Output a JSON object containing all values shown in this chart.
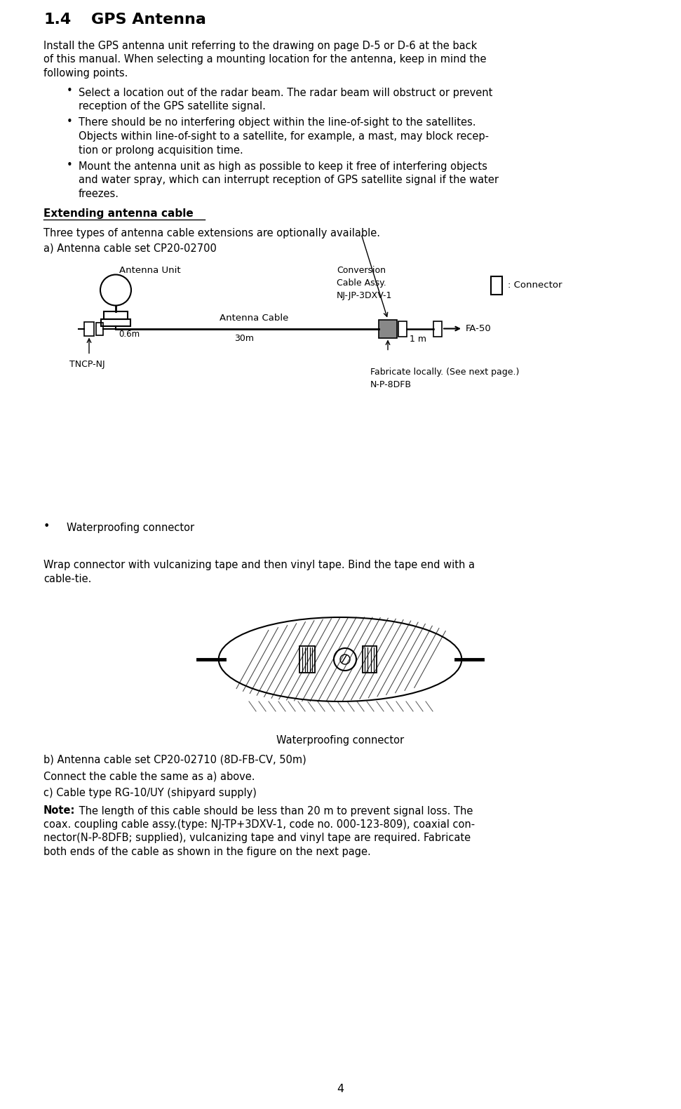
{
  "page_number": "4",
  "section_number": "1.4",
  "section_title": "GPS Antenna",
  "bg_color": "#ffffff",
  "text_color": "#000000",
  "body_font_size": 10.5,
  "title_font_size": 16,
  "intro_text": "Install the GPS antenna unit referring to the drawing on page D-5 or D-6 at the back\nof this manual. When selecting a mounting location for the antenna, keep in mind the\nfollowing points.",
  "bullets": [
    "Select a location out of the radar beam. The radar beam will obstruct or prevent\nreception of the GPS satellite signal.",
    "There should be no interfering object within the line-of-sight to the satellites.\nObjects within line-of-sight to a satellite, for example, a mast, may block recep-\ntion or prolong acquisition time.",
    "Mount the antenna unit as high as possible to keep it free of interfering objects\nand water spray, which can interrupt reception of GPS satellite signal if the water\nfreezes."
  ],
  "subheading": "Extending antenna cable",
  "para1": "Three types of antenna cable extensions are optionally available.",
  "para2": "a) Antenna cable set CP20-02700",
  "bullet_waterproof": "Waterproofing connector",
  "para3": "Wrap connector with vulcanizing tape and then vinyl tape. Bind the tape end with a\ncable-tie.",
  "waterproof_label": "Waterproofing connector",
  "para4": "b) Antenna cable set CP20-02710 (8D-FB-CV, 50m)",
  "para5": "Connect the cable the same as a) above.",
  "para6": "c) Cable type RG-10/UY (shipyard supply)",
  "note_bold": "Note:",
  "note_text": " The length of this cable should be less than 20 m to prevent signal loss. The\ncoax. coupling cable assy.(type: NJ-TP+3DXV-1, code no. 000-123-809), coaxial con-\nnector(N-P-8DFB; supplied), vulcanizing tape and vinyl tape are required. Fabricate\nboth ends of the cable as shown in the figure on the next page.",
  "diagram_labels": {
    "antenna_unit": "Antenna Unit",
    "conversion_cable": "Conversion\nCable Assy.\nNJ-JP-3DXV-1",
    "connector_legend": ": Connector",
    "antenna_cable": "Antenna Cable",
    "length_30m": "30m",
    "length_1m": "1 m",
    "fa50": "FA-50",
    "tncp_nj": "TNCP-NJ",
    "fabricate": "Fabricate locally. (See next page.)\nN-P-8DFB",
    "length_06m": "0.6m"
  }
}
